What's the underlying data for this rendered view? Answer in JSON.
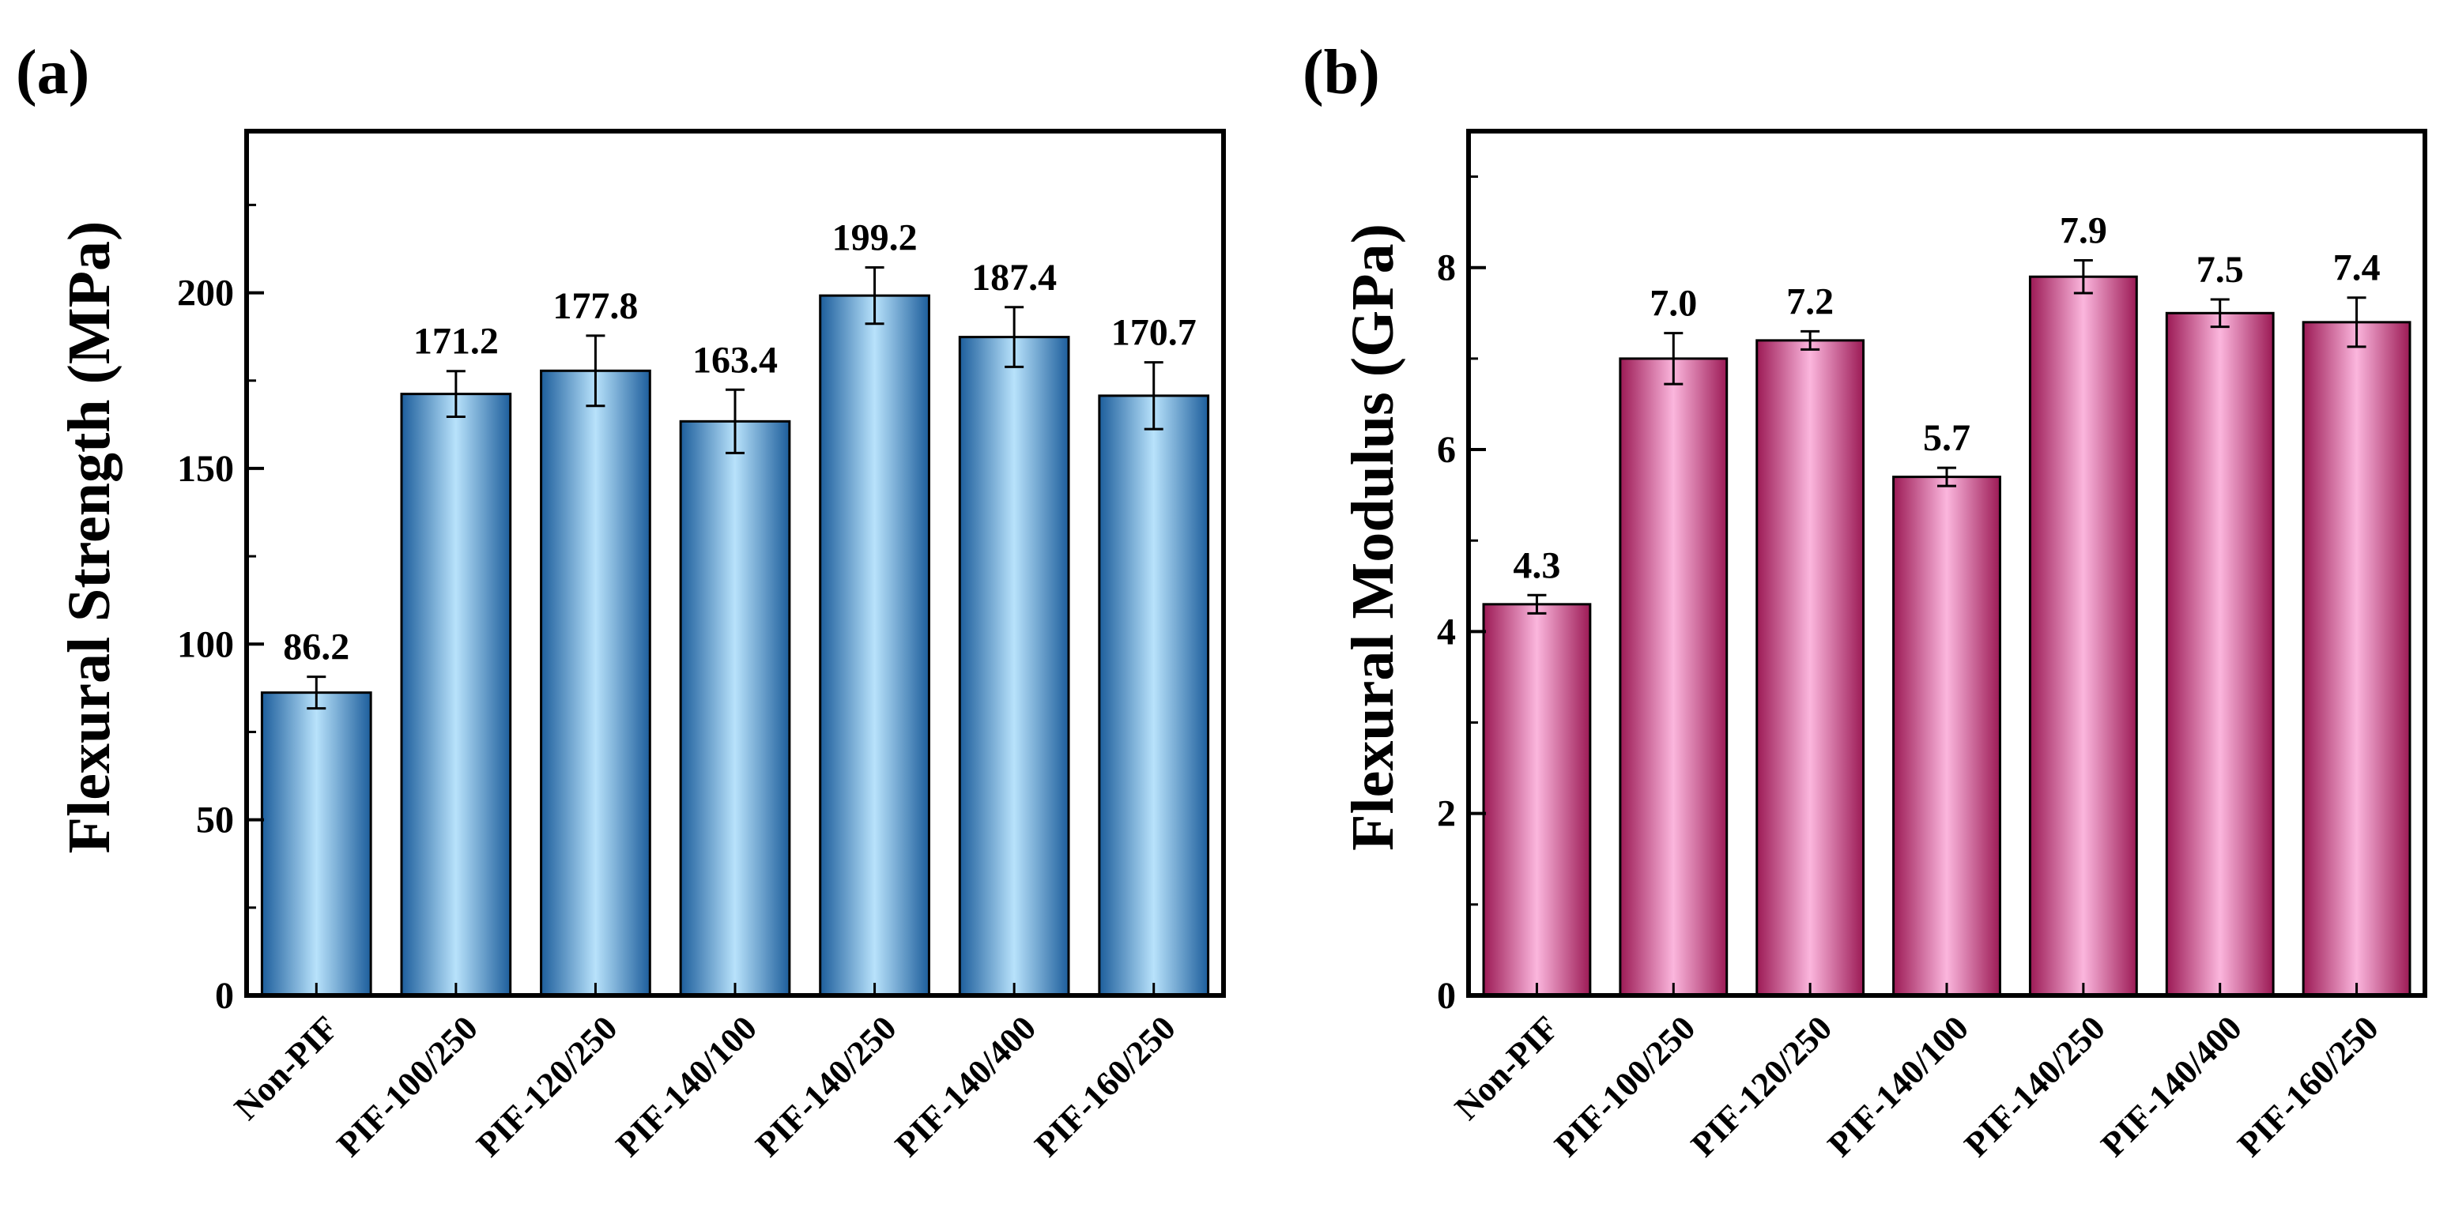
{
  "chart_data": [
    {
      "panel": "(a)",
      "type": "bar",
      "title": "",
      "xlabel": "",
      "ylabel": "Flexural Strength (MPa)",
      "categories": [
        "Non-PIF",
        "PIF-100/250",
        "PIF-120/250",
        "PIF-140/100",
        "PIF-140/250",
        "PIF-140/400",
        "PIF-160/250"
      ],
      "values": [
        86.2,
        171.2,
        177.8,
        163.4,
        199.2,
        187.4,
        170.7
      ],
      "value_labels": [
        "86.2",
        "171.2",
        "177.8",
        "163.4",
        "199.2",
        "187.4",
        "170.7"
      ],
      "errors": [
        4.5,
        6.5,
        10.0,
        9.0,
        8.0,
        8.5,
        9.5
      ],
      "ylim": [
        0,
        246
      ],
      "yticks": [
        0,
        50,
        100,
        150,
        200
      ],
      "ytick_labels": [
        "0",
        "50",
        "100",
        "150",
        "200"
      ],
      "grid": false,
      "colors": {
        "edge": "#1d5e9c",
        "center": "#b8e2fb"
      }
    },
    {
      "panel": "(b)",
      "type": "bar",
      "title": "",
      "xlabel": "",
      "ylabel": "Flexural Modulus (GPa)",
      "categories": [
        "Non-PIF",
        "PIF-100/250",
        "PIF-120/250",
        "PIF-140/100",
        "PIF-140/250",
        "PIF-140/400",
        "PIF-160/250"
      ],
      "values": [
        4.3,
        7.0,
        7.2,
        5.7,
        7.9,
        7.5,
        7.4
      ],
      "value_labels": [
        "4.3",
        "7.0",
        "7.2",
        "5.7",
        "7.9",
        "7.5",
        "7.4"
      ],
      "errors": [
        0.1,
        0.28,
        0.1,
        0.1,
        0.18,
        0.15,
        0.27
      ],
      "ylim": [
        0,
        9.5
      ],
      "yticks": [
        0,
        2,
        4,
        6,
        8
      ],
      "ytick_labels": [
        "0",
        "2",
        "4",
        "6",
        "8"
      ],
      "grid": false,
      "colors": {
        "edge": "#9c1a55",
        "center": "#fbb6dd"
      }
    }
  ]
}
